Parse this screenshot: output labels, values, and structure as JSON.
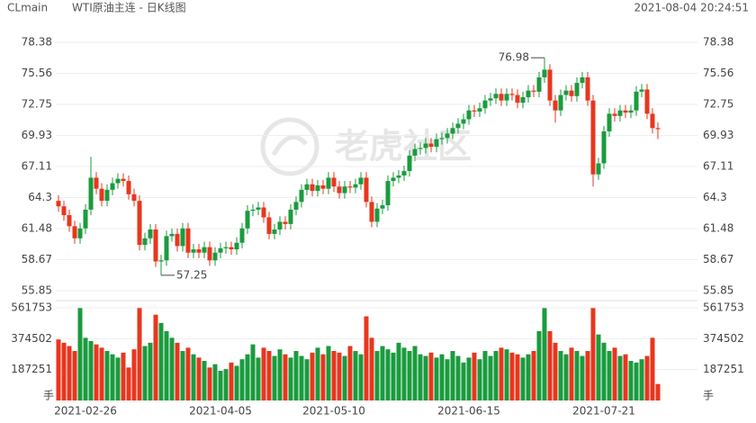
{
  "chart_data": {
    "type": "candlestick",
    "symbol": "CLmain",
    "title": "WTI原油主连 - 日K线图",
    "timestamp": "2021-08-04 20:24:51",
    "watermark": "老虎社区",
    "up_color": "#1a9b3e",
    "down_color": "#e8361e",
    "grid": true,
    "categories": [
      null,
      null,
      null,
      null,
      null,
      "2021-02-26",
      null,
      null,
      null,
      null,
      null,
      null,
      null,
      null,
      null,
      null,
      null,
      null,
      null,
      null,
      null,
      null,
      null,
      null,
      null,
      null,
      null,
      null,
      null,
      null,
      "2021-04-05",
      null,
      null,
      null,
      null,
      null,
      null,
      null,
      null,
      null,
      null,
      null,
      null,
      null,
      null,
      null,
      null,
      null,
      null,
      null,
      null,
      "2021-05-10",
      null,
      null,
      null,
      null,
      null,
      null,
      null,
      null,
      null,
      null,
      null,
      null,
      null,
      null,
      null,
      null,
      null,
      null,
      null,
      null,
      null,
      null,
      null,
      null,
      "2021-06-15",
      null,
      null,
      null,
      null,
      null,
      null,
      null,
      null,
      null,
      null,
      null,
      null,
      null,
      null,
      null,
      null,
      null,
      null,
      null,
      null,
      null,
      null,
      null,
      null,
      "2021-07-21",
      null,
      null,
      null,
      null,
      null,
      null,
      null,
      null,
      null,
      null
    ],
    "open": [
      64.0,
      63.5,
      62.7,
      61.7,
      60.6,
      61.5,
      63.2,
      66.1,
      65.1,
      64.0,
      65.0,
      65.6,
      66.0,
      65.8,
      64.6,
      64.0,
      60.0,
      60.6,
      61.4,
      58.5,
      58.6,
      60.8,
      61.0,
      59.9,
      61.5,
      59.3,
      59.6,
      59.3,
      59.8,
      58.6,
      59.3,
      59.7,
      59.8,
      59.6,
      60.2,
      61.5,
      63.1,
      63.2,
      63.4,
      62.5,
      61.0,
      61.4,
      62.1,
      61.9,
      63.2,
      63.9,
      65.0,
      65.5,
      64.9,
      65.4,
      65.1,
      66.1,
      65.3,
      64.7,
      65.3,
      65.2,
      65.5,
      66.1,
      63.9,
      62.1,
      63.3,
      63.6,
      65.8,
      66.1,
      66.3,
      66.7,
      68.1,
      68.7,
      68.8,
      69.2,
      68.9,
      69.6,
      69.7,
      70.1,
      70.6,
      71.0,
      71.4,
      72.2,
      72.1,
      72.4,
      73.1,
      73.3,
      73.7,
      73.1,
      73.7,
      73.6,
      72.9,
      73.4,
      74.0,
      73.9,
      75.2,
      75.9,
      73.1,
      72.2,
      73.6,
      74.0,
      73.5,
      74.7,
      75.2,
      73.1,
      66.4,
      67.4,
      70.3,
      71.9,
      71.7,
      72.2,
      72.0,
      72.2,
      73.9,
      74.1,
      71.9,
      70.6
    ],
    "high": [
      64.5,
      64.0,
      63.2,
      62.2,
      62.0,
      63.7,
      68.0,
      66.6,
      65.6,
      65.5,
      66.1,
      66.5,
      66.5,
      66.3,
      65.1,
      64.5,
      61.1,
      61.9,
      61.9,
      59.1,
      61.3,
      61.5,
      61.5,
      62.0,
      62.0,
      60.1,
      60.1,
      60.3,
      60.3,
      59.8,
      60.2,
      60.3,
      60.3,
      60.7,
      62.0,
      63.6,
      63.7,
      63.9,
      63.9,
      63.0,
      61.9,
      62.6,
      62.6,
      63.7,
      64.4,
      65.5,
      66.0,
      66.0,
      65.9,
      65.9,
      66.6,
      66.6,
      65.8,
      65.8,
      65.8,
      66.0,
      66.6,
      66.6,
      64.4,
      63.8,
      64.1,
      66.3,
      66.6,
      66.8,
      67.2,
      68.6,
      69.2,
      69.3,
      69.7,
      69.7,
      70.1,
      70.2,
      70.6,
      71.1,
      71.5,
      71.9,
      72.7,
      72.7,
      72.9,
      73.6,
      73.8,
      74.2,
      74.2,
      74.2,
      74.2,
      74.1,
      73.9,
      74.5,
      74.5,
      75.7,
      76.98,
      76.4,
      73.6,
      74.1,
      74.5,
      74.5,
      75.2,
      75.7,
      75.7,
      73.6,
      67.9,
      70.8,
      72.4,
      72.4,
      72.7,
      72.7,
      72.7,
      74.4,
      74.6,
      74.6,
      72.4,
      71.1
    ],
    "low": [
      63.0,
      62.2,
      61.2,
      60.1,
      60.1,
      61.0,
      62.7,
      64.6,
      63.5,
      63.5,
      64.5,
      65.1,
      65.3,
      64.1,
      63.5,
      59.5,
      59.5,
      60.1,
      58.0,
      57.25,
      58.1,
      60.3,
      59.4,
      59.4,
      58.8,
      58.8,
      58.8,
      58.8,
      58.1,
      58.1,
      58.8,
      59.2,
      59.1,
      59.1,
      59.7,
      61.0,
      62.6,
      62.7,
      62.0,
      60.5,
      60.5,
      60.9,
      61.4,
      61.4,
      62.7,
      63.4,
      64.5,
      64.4,
      64.4,
      64.6,
      64.6,
      64.8,
      64.2,
      64.2,
      64.7,
      64.7,
      65.0,
      63.4,
      61.6,
      61.6,
      62.8,
      63.1,
      65.3,
      65.6,
      65.8,
      66.2,
      67.6,
      68.2,
      68.3,
      68.4,
      68.4,
      69.1,
      69.2,
      69.6,
      70.1,
      70.5,
      70.9,
      71.6,
      71.6,
      71.9,
      72.6,
      72.8,
      72.6,
      72.6,
      73.1,
      72.4,
      72.4,
      72.9,
      73.4,
      73.4,
      74.7,
      72.6,
      71.1,
      71.7,
      73.1,
      73.0,
      73.0,
      74.2,
      72.6,
      65.3,
      65.9,
      66.9,
      69.8,
      71.2,
      71.2,
      71.5,
      71.5,
      71.7,
      73.4,
      71.4,
      70.1,
      69.6
    ],
    "close": [
      63.5,
      62.7,
      61.7,
      60.6,
      61.5,
      63.2,
      66.1,
      65.1,
      64.0,
      65.0,
      65.6,
      66.0,
      65.8,
      64.6,
      64.0,
      60.0,
      60.6,
      61.4,
      58.5,
      58.6,
      60.8,
      61.0,
      59.9,
      61.5,
      59.3,
      59.6,
      59.3,
      59.8,
      58.6,
      59.3,
      59.7,
      59.8,
      59.6,
      60.2,
      61.5,
      63.1,
      63.2,
      63.4,
      62.5,
      61.0,
      61.4,
      62.1,
      61.9,
      63.2,
      63.9,
      65.0,
      65.5,
      64.9,
      65.4,
      65.1,
      66.1,
      65.3,
      64.7,
      65.3,
      65.2,
      65.5,
      66.1,
      63.9,
      62.1,
      63.3,
      63.6,
      65.8,
      66.1,
      66.3,
      66.7,
      68.1,
      68.7,
      68.8,
      69.2,
      68.9,
      69.6,
      69.7,
      70.1,
      70.6,
      71.0,
      71.4,
      72.2,
      72.1,
      72.4,
      73.1,
      73.3,
      73.7,
      73.1,
      73.7,
      73.6,
      72.9,
      73.4,
      74.0,
      73.9,
      75.2,
      75.9,
      73.1,
      72.2,
      73.6,
      74.0,
      73.5,
      74.7,
      75.2,
      73.1,
      66.4,
      67.4,
      70.3,
      71.9,
      71.7,
      72.2,
      72.0,
      72.2,
      73.9,
      74.1,
      71.9,
      70.6,
      70.5
    ],
    "volume": [
      370000,
      350000,
      330000,
      300000,
      560000,
      380000,
      360000,
      340000,
      320000,
      300000,
      280000,
      260000,
      290000,
      200000,
      310000,
      560000,
      330000,
      350000,
      520000,
      470000,
      420000,
      380000,
      350000,
      300000,
      320000,
      280000,
      260000,
      240000,
      200000,
      220000,
      180000,
      190000,
      230000,
      210000,
      250000,
      280000,
      340000,
      260000,
      320000,
      300000,
      270000,
      310000,
      280000,
      260000,
      300000,
      270000,
      250000,
      290000,
      320000,
      280000,
      330000,
      300000,
      290000,
      270000,
      330000,
      300000,
      280000,
      510000,
      380000,
      300000,
      330000,
      310000,
      290000,
      350000,
      320000,
      300000,
      330000,
      280000,
      270000,
      290000,
      260000,
      280000,
      250000,
      300000,
      270000,
      230000,
      260000,
      290000,
      250000,
      300000,
      270000,
      300000,
      320000,
      310000,
      290000,
      280000,
      260000,
      280000,
      300000,
      420000,
      560000,
      420000,
      350000,
      300000,
      280000,
      320000,
      300000,
      270000,
      300000,
      560000,
      400000,
      350000,
      300000,
      320000,
      270000,
      280000,
      240000,
      230000,
      250000,
      270000,
      380000,
      100000
    ],
    "ylim": [
      55.85,
      78.38
    ],
    "yticks": [
      55.85,
      58.67,
      61.48,
      64.3,
      67.11,
      69.93,
      72.75,
      75.56,
      78.38
    ],
    "volume_ylim": [
      0,
      561753
    ],
    "volume_ticks": [
      187251,
      374502,
      561753
    ],
    "volume_unit": "手"
  }
}
